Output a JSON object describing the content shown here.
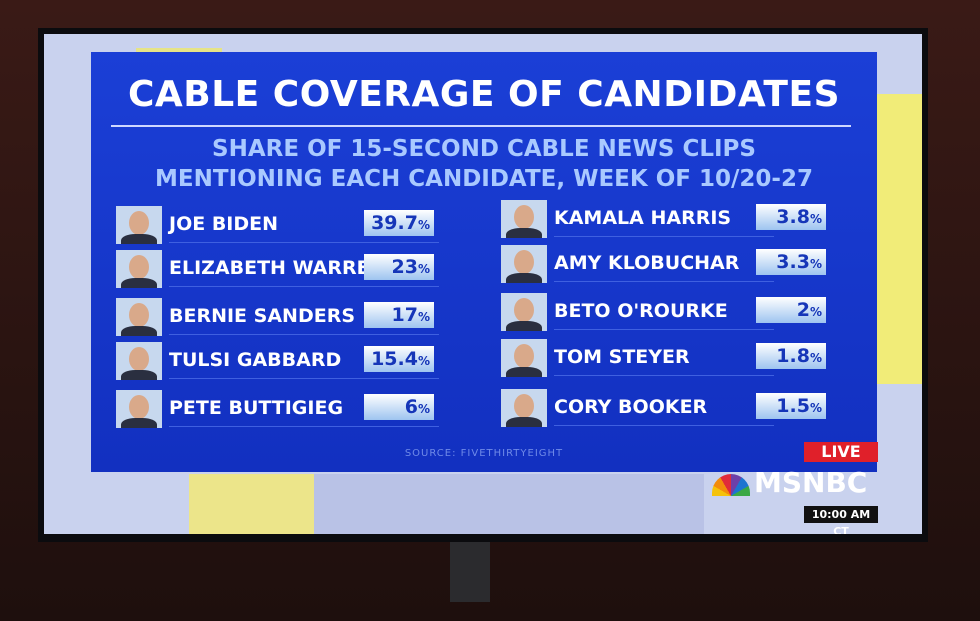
{
  "graphic": {
    "title": "CABLE COVERAGE OF CANDIDATES",
    "subtitle_lines": [
      "SHARE OF 15-SECOND CABLE NEWS CLIPS",
      "MENTIONING EACH CANDIDATE, WEEK OF 10/20-27"
    ],
    "columns": [
      [
        {
          "name": "JOE BIDEN",
          "value": "39.7",
          "unit": "%"
        },
        {
          "name": "ELIZABETH WARREN",
          "value": "23",
          "unit": "%"
        },
        {
          "name": "BERNIE SANDERS",
          "value": "17",
          "unit": "%"
        },
        {
          "name": "TULSI GABBARD",
          "value": "15.4",
          "unit": "%"
        },
        {
          "name": "PETE BUTTIGIEG",
          "value": "6",
          "unit": "%"
        }
      ],
      [
        {
          "name": "KAMALA HARRIS",
          "value": "3.8",
          "unit": "%"
        },
        {
          "name": "AMY KLOBUCHAR",
          "value": "3.3",
          "unit": "%"
        },
        {
          "name": "BETO O'ROURKE",
          "value": "2",
          "unit": "%"
        },
        {
          "name": "TOM STEYER",
          "value": "1.8",
          "unit": "%"
        },
        {
          "name": "CORY BOOKER",
          "value": "1.5",
          "unit": "%"
        }
      ]
    ],
    "source": "SOURCE: FIVETHIRTYEIGHT"
  },
  "network": {
    "live": "LIVE",
    "logo": "MSNBC",
    "time": "10:00 AM CT"
  }
}
